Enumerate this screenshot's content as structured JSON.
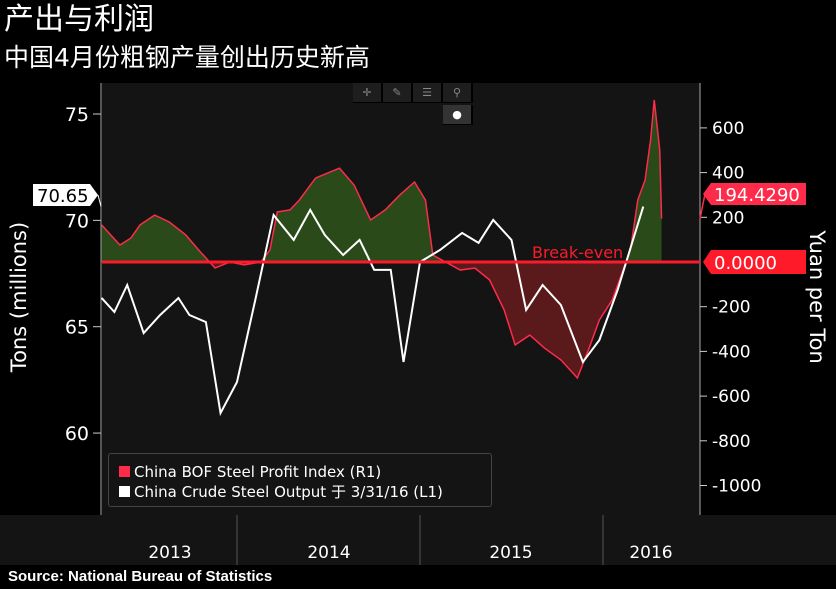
{
  "title": "产出与利润",
  "subtitle": "中国4月份粗钢产量创出历史新高",
  "source": "Source: National Bureau of Statistics",
  "toolbar": {
    "icons": [
      "crosshair-icon",
      "pen-icon",
      "list-icon",
      "search-icon",
      "settings-icon"
    ]
  },
  "chart_data": {
    "type": "line",
    "title": "产出与利润",
    "ylabel_left": "Tons (millions)",
    "ylabel_right": "Yuan per Ton",
    "ylim_left": [
      58.2,
      78
    ],
    "ylim_right": [
      -1130,
      1000
    ],
    "yticks_left": [
      60,
      65,
      70,
      75
    ],
    "yticks_right": [
      -1000,
      -800,
      -600,
      -400,
      -200,
      200,
      400,
      600
    ],
    "xticks": [
      "2013",
      "2014",
      "2015",
      "2016"
    ],
    "annotation": "Break-even",
    "last_left": "70.65",
    "last_right": "194.4290",
    "zero_label": "0.0000",
    "colors": {
      "profit": "#ff2b4a",
      "output": "#ffffff",
      "pos_fill": "#2b4a1a",
      "neg_fill": "#5a1a1c",
      "zero": "#ff1a2a"
    },
    "series": [
      {
        "name": "China BOF Steel Profit Index (R1)",
        "axis": "right",
        "x": [
          2013.26,
          2013.31,
          2013.36,
          2013.42,
          2013.47,
          2013.55,
          2013.63,
          2013.72,
          2013.8,
          2013.88,
          2013.96,
          2014.04,
          2014.13,
          2014.18,
          2014.22,
          2014.29,
          2014.34,
          2014.43,
          2014.51,
          2014.56,
          2014.64,
          2014.73,
          2014.81,
          2014.89,
          2014.97,
          2015.03,
          2015.07,
          2015.14,
          2015.22,
          2015.3,
          2015.38,
          2015.46,
          2015.52,
          2015.6,
          2015.68,
          2015.77,
          2015.86,
          2015.92,
          2015.98,
          2016.05,
          2016.1,
          2016.15,
          2016.19,
          2016.23,
          2016.26,
          2016.28,
          2016.31,
          2016.32
        ],
        "y": [
          166,
          121,
          76,
          107,
          166,
          210,
          179,
          121,
          45,
          -27,
          0,
          -13,
          0,
          54,
          224,
          233,
          277,
          376,
          403,
          420,
          344,
          188,
          233,
          300,
          358,
          277,
          31,
          0,
          -36,
          -27,
          -80,
          -215,
          -371,
          -327,
          -385,
          -438,
          -519,
          -394,
          -260,
          -170,
          -58,
          54,
          277,
          367,
          546,
          725,
          501,
          194.43
        ]
      },
      {
        "name": "China Crude Steel Output 于 3/31/16 (L1)",
        "axis": "left",
        "x": [
          2013.26,
          2013.33,
          2013.4,
          2013.49,
          2013.58,
          2013.68,
          2013.74,
          2013.83,
          2013.91,
          2014.0,
          2014.1,
          2014.2,
          2014.31,
          2014.4,
          2014.48,
          2014.58,
          2014.67,
          2014.75,
          2014.84,
          2014.91,
          2015.0,
          2015.11,
          2015.23,
          2015.32,
          2015.4,
          2015.5,
          2015.58,
          2015.67,
          2015.77,
          2015.89,
          2015.98,
          2016.08,
          2016.22
        ],
        "y": [
          66.35,
          65.69,
          66.96,
          64.7,
          65.55,
          66.35,
          65.55,
          65.22,
          60.94,
          62.4,
          66.26,
          70.25,
          69.08,
          70.49,
          69.31,
          68.37,
          69.08,
          67.67,
          67.67,
          63.34,
          68.04,
          68.61,
          69.41,
          68.94,
          70.02,
          69.08,
          65.79,
          66.96,
          66.02,
          63.34,
          64.37,
          66.73,
          70.65
        ]
      }
    ]
  }
}
